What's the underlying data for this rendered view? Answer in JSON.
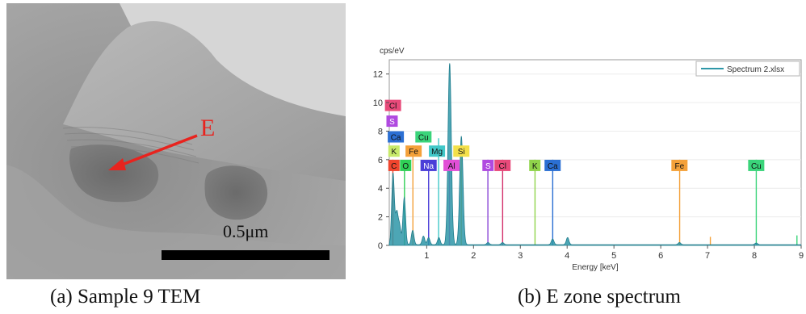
{
  "panel_a": {
    "marker": "E",
    "scale_label": "0.5μm",
    "caption": "(a) Sample 9 TEM",
    "arrow_color": "#e8231e"
  },
  "panel_b": {
    "caption": "(b) E zone spectrum"
  },
  "chart_data": {
    "type": "line",
    "title": "",
    "ylabel": "cps/eV",
    "xlabel": "Energy [keV]",
    "xlim": [
      0.2,
      9
    ],
    "ylim": [
      0,
      13
    ],
    "xticks": [
      1,
      2,
      3,
      4,
      5,
      6,
      7,
      8,
      9
    ],
    "yticks": [
      0,
      2,
      4,
      6,
      8,
      10,
      12
    ],
    "legend": {
      "label": "Spectrum 2.xlsx",
      "placement": "top-right"
    },
    "series": [
      {
        "name": "Spectrum 2.xlsx",
        "color": "#2e97a8",
        "peaks": [
          {
            "x": 0.28,
            "y": 5.0
          },
          {
            "x": 0.36,
            "y": 2.2
          },
          {
            "x": 0.42,
            "y": 1.3
          },
          {
            "x": 0.52,
            "y": 3.3
          },
          {
            "x": 0.7,
            "y": 1.0
          },
          {
            "x": 0.93,
            "y": 0.6
          },
          {
            "x": 1.04,
            "y": 0.5
          },
          {
            "x": 1.26,
            "y": 0.5
          },
          {
            "x": 1.49,
            "y": 12.7
          },
          {
            "x": 1.74,
            "y": 7.6
          },
          {
            "x": 2.31,
            "y": 0.15
          },
          {
            "x": 2.62,
            "y": 0.15
          },
          {
            "x": 3.69,
            "y": 0.4
          },
          {
            "x": 4.01,
            "y": 0.5
          },
          {
            "x": 6.4,
            "y": 0.15
          },
          {
            "x": 8.04,
            "y": 0.12
          }
        ]
      }
    ],
    "element_lines": [
      {
        "el": "C",
        "x": 0.277,
        "h": 6.0,
        "color": "#f0452e"
      },
      {
        "el": "O",
        "x": 0.525,
        "h": 5.8,
        "color": "#2fcf56"
      },
      {
        "el": "Fe",
        "x": 0.705,
        "h": 7.0,
        "color": "#f4a13a"
      },
      {
        "el": "Na",
        "x": 1.041,
        "h": 5.9,
        "color": "#4a3fd8"
      },
      {
        "el": "Mg",
        "x": 1.254,
        "h": 7.5,
        "color": "#41c8c8"
      },
      {
        "el": "Al",
        "x": 1.487,
        "h": 6.0,
        "color": "#e24fd6"
      },
      {
        "el": "Si",
        "x": 1.74,
        "h": 7.2,
        "color": "#e2c62d"
      },
      {
        "el": "S",
        "x": 2.307,
        "h": 6.0,
        "color": "#8a47d6"
      },
      {
        "el": "Cl",
        "x": 2.622,
        "h": 6.0,
        "color": "#d4306b"
      },
      {
        "el": "K",
        "x": 3.314,
        "h": 6.0,
        "color": "#8fd34a"
      },
      {
        "el": "Ca",
        "x": 3.692,
        "h": 6.0,
        "color": "#2b6fd3"
      },
      {
        "el": "Fe",
        "x": 6.404,
        "h": 6.0,
        "color": "#f4a13a"
      },
      {
        "el": "Cu",
        "x": 8.041,
        "h": 6.0,
        "color": "#3ad47a"
      },
      {
        "el": "Fe",
        "x": 7.06,
        "h": 0.6,
        "color": "#f4a13a"
      },
      {
        "el": "Cu",
        "x": 8.91,
        "h": 0.7,
        "color": "#3ad47a"
      }
    ],
    "element_labels": [
      {
        "el": "Cl",
        "x": 0.28,
        "y": 9.8,
        "color": "#e84a7a",
        "fg": "#111"
      },
      {
        "el": "S",
        "x": 0.26,
        "y": 8.7,
        "color": "#b04ae0",
        "fg": "#fff"
      },
      {
        "el": "Ca",
        "x": 0.34,
        "y": 7.6,
        "color": "#2b6fd3",
        "fg": "#111"
      },
      {
        "el": "Cu",
        "x": 0.93,
        "y": 7.6,
        "color": "#3ad47a",
        "fg": "#111"
      },
      {
        "el": "K",
        "x": 0.3,
        "y": 6.6,
        "color": "#c8ea6a",
        "fg": "#111"
      },
      {
        "el": "Fe",
        "x": 0.72,
        "y": 6.6,
        "color": "#f4a13a",
        "fg": "#111"
      },
      {
        "el": "Mg",
        "x": 1.22,
        "y": 6.6,
        "color": "#41c8c8",
        "fg": "#111"
      },
      {
        "el": "Si",
        "x": 1.74,
        "y": 6.6,
        "color": "#f3e04a",
        "fg": "#111"
      },
      {
        "el": "C",
        "x": 0.3,
        "y": 5.6,
        "color": "#f0452e",
        "fg": "#111"
      },
      {
        "el": "O",
        "x": 0.55,
        "y": 5.6,
        "color": "#2fcf56",
        "fg": "#111"
      },
      {
        "el": "Na",
        "x": 1.04,
        "y": 5.6,
        "color": "#4a3fd8",
        "fg": "#fff"
      },
      {
        "el": "Al",
        "x": 1.53,
        "y": 5.6,
        "color": "#e24fd6",
        "fg": "#111"
      },
      {
        "el": "S",
        "x": 2.31,
        "y": 5.6,
        "color": "#b04ae0",
        "fg": "#fff"
      },
      {
        "el": "Cl",
        "x": 2.62,
        "y": 5.6,
        "color": "#e84a7a",
        "fg": "#111"
      },
      {
        "el": "K",
        "x": 3.31,
        "y": 5.6,
        "color": "#8fd34a",
        "fg": "#111"
      },
      {
        "el": "Ca",
        "x": 3.69,
        "y": 5.6,
        "color": "#2b6fd3",
        "fg": "#111"
      },
      {
        "el": "Fe",
        "x": 6.4,
        "y": 5.6,
        "color": "#f4a13a",
        "fg": "#111"
      },
      {
        "el": "Cu",
        "x": 8.04,
        "y": 5.6,
        "color": "#3ad47a",
        "fg": "#111"
      }
    ]
  }
}
